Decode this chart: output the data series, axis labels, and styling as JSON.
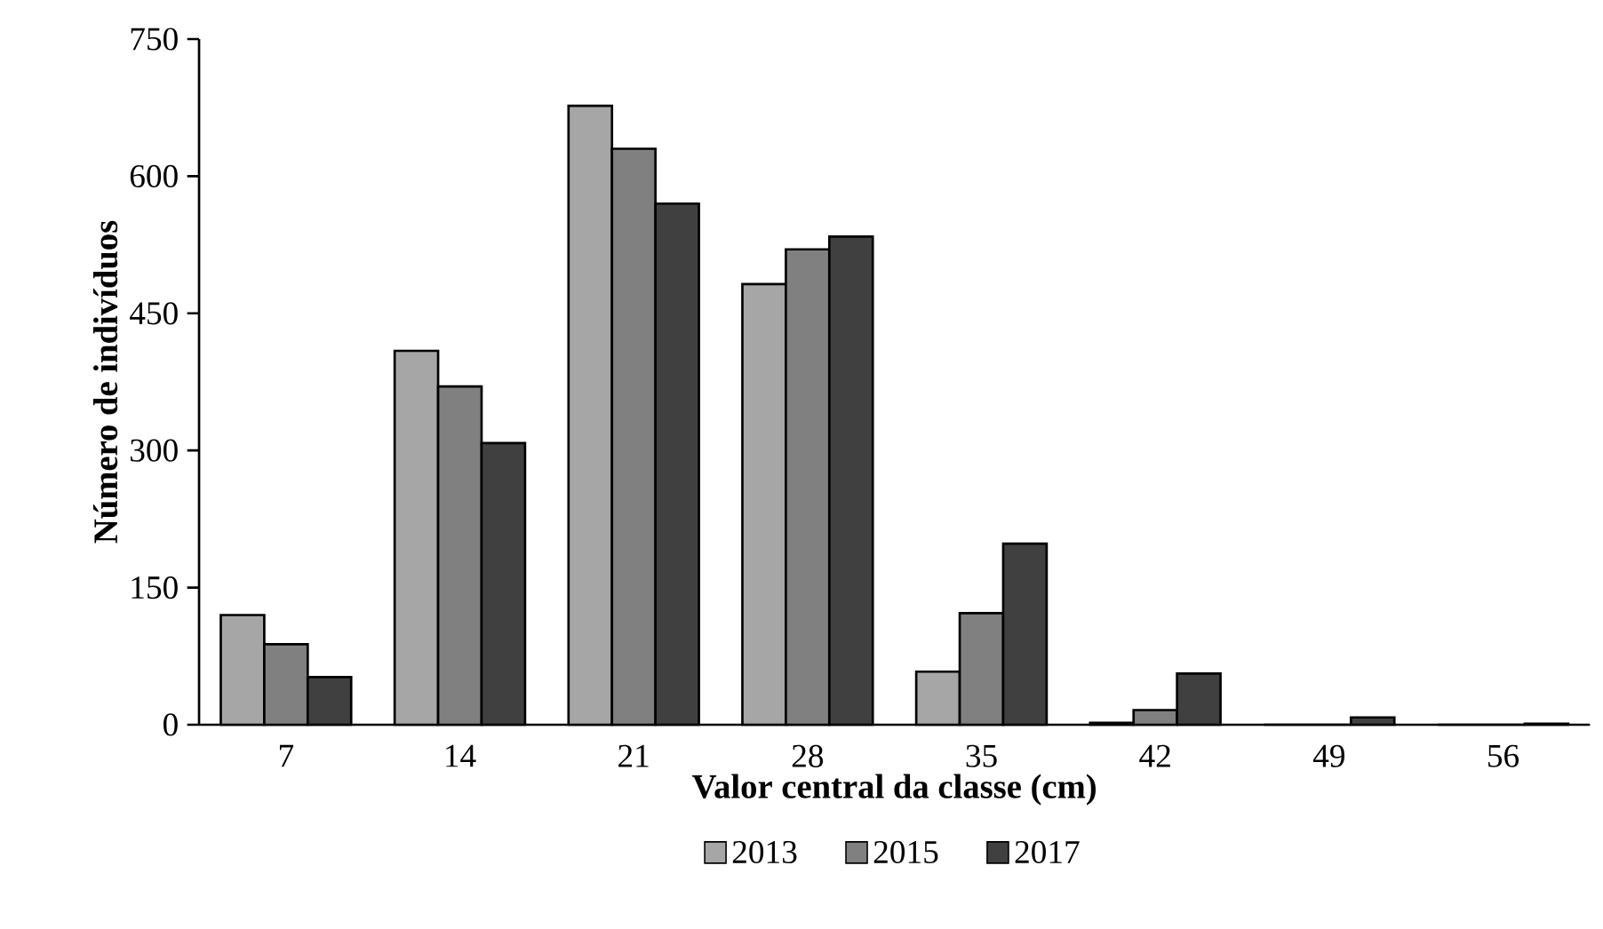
{
  "chart_data": {
    "type": "bar",
    "xlabel": "Valor central da classe (cm)",
    "ylabel": "Número de indivíduos",
    "categories": [
      "7",
      "14",
      "21",
      "28",
      "35",
      "42",
      "49",
      "56"
    ],
    "series": [
      {
        "name": "2013",
        "color": "#a6a6a6",
        "values": [
          120,
          409,
          677,
          482,
          58,
          2,
          0,
          0
        ]
      },
      {
        "name": "2015",
        "color": "#808080",
        "values": [
          88,
          370,
          630,
          520,
          122,
          16,
          0,
          0
        ]
      },
      {
        "name": "2017",
        "color": "#404040",
        "values": [
          52,
          308,
          570,
          534,
          198,
          56,
          8,
          1
        ]
      }
    ],
    "ylim": [
      0,
      750
    ],
    "yticks": [
      0,
      150,
      300,
      450,
      600,
      750
    ],
    "grid": false,
    "legend": "bottom"
  }
}
